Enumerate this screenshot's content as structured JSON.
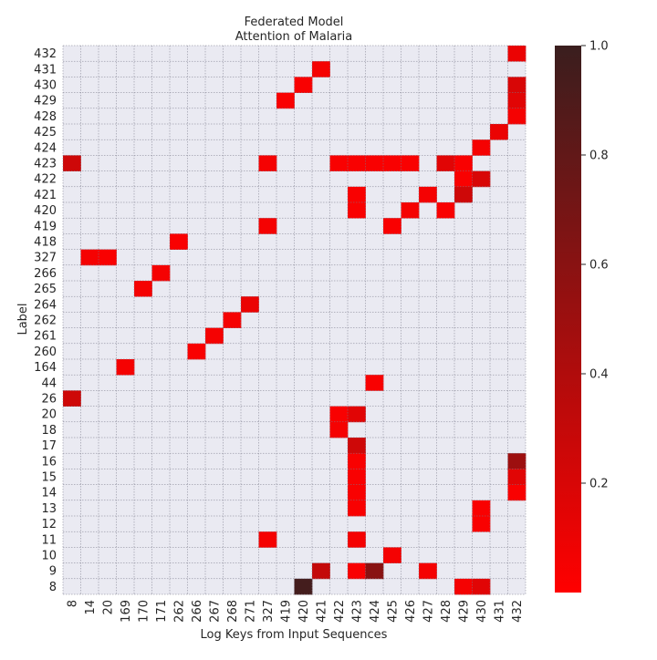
{
  "chart_data": {
    "type": "heatmap",
    "title": "Federated Model",
    "subtitle": "Attention of Malaria",
    "xlabel": "Log Keys from Input Sequences",
    "ylabel": "Label",
    "x_categories": [
      "8",
      "14",
      "20",
      "169",
      "170",
      "171",
      "262",
      "266",
      "267",
      "268",
      "271",
      "327",
      "419",
      "420",
      "421",
      "422",
      "423",
      "424",
      "425",
      "426",
      "427",
      "428",
      "429",
      "430",
      "431",
      "432"
    ],
    "y_categories": [
      "432",
      "431",
      "430",
      "429",
      "428",
      "425",
      "424",
      "423",
      "422",
      "421",
      "420",
      "419",
      "418",
      "327",
      "266",
      "265",
      "264",
      "262",
      "261",
      "260",
      "164",
      "44",
      "26",
      "20",
      "18",
      "17",
      "16",
      "15",
      "14",
      "13",
      "12",
      "11",
      "10",
      "9",
      "8"
    ],
    "cells": [
      {
        "y": "432",
        "x": "432",
        "value": 0.1
      },
      {
        "y": "431",
        "x": "421",
        "value": 0.05
      },
      {
        "y": "430",
        "x": "420",
        "value": 0.03
      },
      {
        "y": "430",
        "x": "432",
        "value": 0.2
      },
      {
        "y": "429",
        "x": "419",
        "value": 0.03
      },
      {
        "y": "429",
        "x": "432",
        "value": 0.15
      },
      {
        "y": "428",
        "x": "432",
        "value": 0.05
      },
      {
        "y": "425",
        "x": "431",
        "value": 0.1
      },
      {
        "y": "424",
        "x": "430",
        "value": 0.05
      },
      {
        "y": "423",
        "x": "8",
        "value": 0.25
      },
      {
        "y": "423",
        "x": "327",
        "value": 0.05
      },
      {
        "y": "423",
        "x": "422",
        "value": 0.03
      },
      {
        "y": "423",
        "x": "423",
        "value": 0.03
      },
      {
        "y": "423",
        "x": "424",
        "value": 0.03
      },
      {
        "y": "423",
        "x": "425",
        "value": 0.03
      },
      {
        "y": "423",
        "x": "426",
        "value": 0.03
      },
      {
        "y": "423",
        "x": "428",
        "value": 0.15
      },
      {
        "y": "423",
        "x": "429",
        "value": 0.03
      },
      {
        "y": "422",
        "x": "429",
        "value": 0.03
      },
      {
        "y": "422",
        "x": "430",
        "value": 0.2
      },
      {
        "y": "421",
        "x": "423",
        "value": 0.03
      },
      {
        "y": "421",
        "x": "427",
        "value": 0.05
      },
      {
        "y": "421",
        "x": "429",
        "value": 0.25
      },
      {
        "y": "420",
        "x": "423",
        "value": 0.03
      },
      {
        "y": "420",
        "x": "426",
        "value": 0.05
      },
      {
        "y": "420",
        "x": "428",
        "value": 0.03
      },
      {
        "y": "419",
        "x": "327",
        "value": 0.05
      },
      {
        "y": "419",
        "x": "425",
        "value": 0.03
      },
      {
        "y": "418",
        "x": "262",
        "value": 0.03
      },
      {
        "y": "327",
        "x": "14",
        "value": 0.05
      },
      {
        "y": "327",
        "x": "20",
        "value": 0.03
      },
      {
        "y": "266",
        "x": "171",
        "value": 0.05
      },
      {
        "y": "265",
        "x": "170",
        "value": 0.05
      },
      {
        "y": "264",
        "x": "271",
        "value": 0.1
      },
      {
        "y": "262",
        "x": "268",
        "value": 0.05
      },
      {
        "y": "261",
        "x": "267",
        "value": 0.05
      },
      {
        "y": "260",
        "x": "266",
        "value": 0.03
      },
      {
        "y": "164",
        "x": "169",
        "value": 0.05
      },
      {
        "y": "44",
        "x": "424",
        "value": 0.03
      },
      {
        "y": "26",
        "x": "8",
        "value": 0.25
      },
      {
        "y": "20",
        "x": "422",
        "value": 0.03
      },
      {
        "y": "20",
        "x": "423",
        "value": 0.15
      },
      {
        "y": "18",
        "x": "422",
        "value": 0.05
      },
      {
        "y": "17",
        "x": "423",
        "value": 0.25
      },
      {
        "y": "16",
        "x": "423",
        "value": 0.03
      },
      {
        "y": "16",
        "x": "432",
        "value": 0.5
      },
      {
        "y": "15",
        "x": "423",
        "value": 0.03
      },
      {
        "y": "15",
        "x": "432",
        "value": 0.15
      },
      {
        "y": "14",
        "x": "423",
        "value": 0.03
      },
      {
        "y": "14",
        "x": "432",
        "value": 0.03
      },
      {
        "y": "13",
        "x": "423",
        "value": 0.03
      },
      {
        "y": "13",
        "x": "430",
        "value": 0.03
      },
      {
        "y": "12",
        "x": "430",
        "value": 0.03
      },
      {
        "y": "11",
        "x": "327",
        "value": 0.05
      },
      {
        "y": "11",
        "x": "423",
        "value": 0.05
      },
      {
        "y": "10",
        "x": "425",
        "value": 0.05
      },
      {
        "y": "9",
        "x": "421",
        "value": 0.3
      },
      {
        "y": "9",
        "x": "423",
        "value": 0.03
      },
      {
        "y": "9",
        "x": "424",
        "value": 0.6
      },
      {
        "y": "9",
        "x": "427",
        "value": 0.05
      },
      {
        "y": "8",
        "x": "420",
        "value": 0.95
      },
      {
        "y": "8",
        "x": "429",
        "value": 0.05
      },
      {
        "y": "8",
        "x": "430",
        "value": 0.15
      }
    ],
    "colorbar": {
      "range": [
        0.0,
        1.0
      ],
      "tick_values": [
        0.2,
        0.4,
        0.6,
        0.8,
        1.0
      ],
      "tick_labels": [
        "0.2",
        "0.4",
        "0.6",
        "0.8",
        "1.0"
      ]
    },
    "colormap": [
      "#ff0000",
      "#3a1e1e"
    ],
    "empty_cell_color": "#eaeaf2",
    "grid_color": "#7a7a8a",
    "grid": true
  }
}
